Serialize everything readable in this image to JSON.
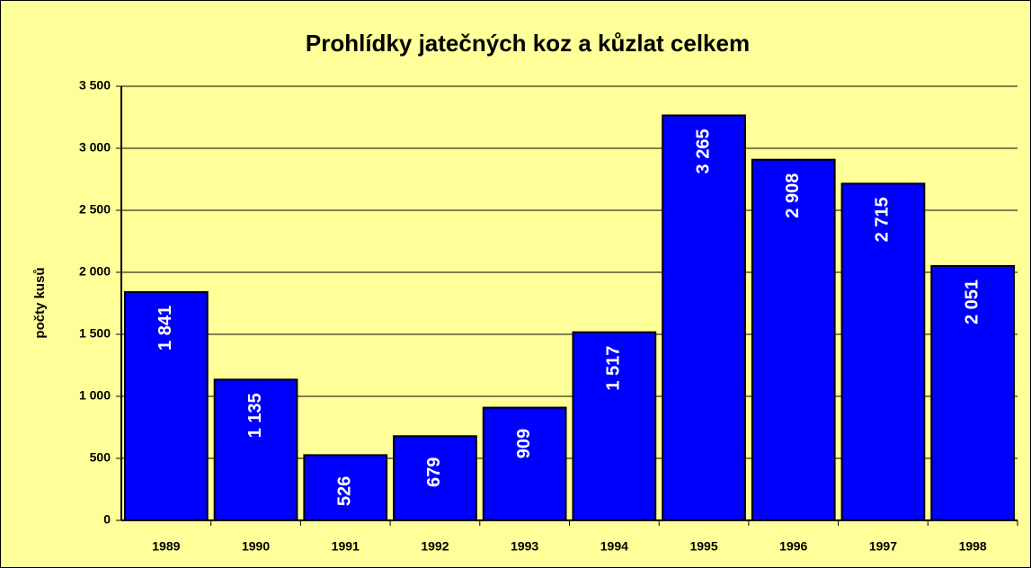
{
  "chart_data": {
    "type": "bar",
    "title": "Prohlídky jatečných koz a kůzlat celkem",
    "y_label": "počty kusů",
    "categories": [
      "1989",
      "1990",
      "1991",
      "1992",
      "1993",
      "1994",
      "1995",
      "1996",
      "1997",
      "1998"
    ],
    "values": [
      1841,
      1135,
      526,
      679,
      909,
      1517,
      3265,
      2908,
      2715,
      2051
    ],
    "value_labels": [
      "1 841",
      "1 135",
      "526",
      "679",
      "909",
      "1 517",
      "3 265",
      "2 908",
      "2 715",
      "2 051"
    ],
    "color": "#0000ff",
    "ylim": [
      0,
      3500
    ],
    "yticks": [
      0,
      500,
      {
        "value": 1000,
        "label": "1 000"
      },
      {
        "value": 1500,
        "label": "1 500"
      },
      {
        "value": 2000,
        "label": "2 000"
      },
      {
        "value": 2500,
        "label": "2 500"
      },
      {
        "value": 3000,
        "label": "3 000"
      },
      {
        "value": 3500,
        "label": "3 500"
      }
    ],
    "grid": true
  }
}
